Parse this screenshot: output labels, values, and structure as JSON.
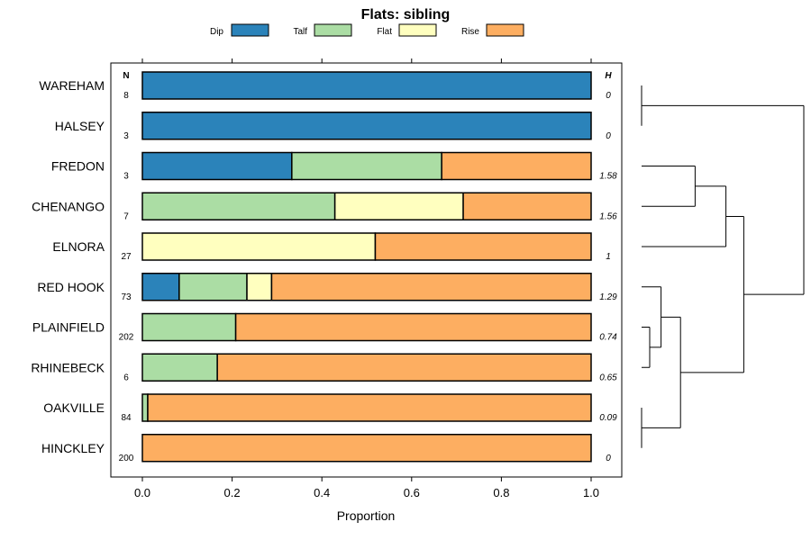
{
  "chart_data": {
    "type": "bar",
    "orientation": "horizontal",
    "stacked": true,
    "title": "Flats: sibling",
    "xlabel": "Proportion",
    "ylabel": "",
    "xlim": [
      0,
      1
    ],
    "xticks": [
      "0.0",
      "0.2",
      "0.4",
      "0.6",
      "0.8",
      "1.0"
    ],
    "n_header": "N",
    "h_header": "H",
    "legend_position": "top",
    "legend": [
      {
        "name": "Dip",
        "color": "#2b83ba"
      },
      {
        "name": "Talf",
        "color": "#abdda4"
      },
      {
        "name": "Flat",
        "color": "#ffffbf"
      },
      {
        "name": "Rise",
        "color": "#fdae61"
      }
    ],
    "categories": [
      "WAREHAM",
      "HALSEY",
      "FREDON",
      "CHENANGO",
      "ELNORA",
      "RED HOOK",
      "PLAINFIELD",
      "RHINEBECK",
      "OAKVILLE",
      "HINCKLEY"
    ],
    "n": [
      "8",
      "3",
      "3",
      "7",
      "27",
      "73",
      "202",
      "6",
      "84",
      "200"
    ],
    "h": [
      "0",
      "0",
      "1.58",
      "1.56",
      "1",
      "1.29",
      "0.74",
      "0.65",
      "0.09",
      "0"
    ],
    "series": [
      {
        "name": "Dip",
        "values": [
          1.0,
          1.0,
          0.333,
          0,
          0,
          0.082,
          0,
          0,
          0,
          0
        ]
      },
      {
        "name": "Talf",
        "values": [
          0,
          0,
          0.334,
          0.429,
          0,
          0.151,
          0.208,
          0.167,
          0.012,
          0
        ]
      },
      {
        "name": "Flat",
        "values": [
          0,
          0,
          0,
          0.286,
          0.519,
          0.055,
          0,
          0,
          0,
          0
        ]
      },
      {
        "name": "Rise",
        "values": [
          0,
          0,
          0.333,
          0.285,
          0.481,
          0.712,
          0.792,
          0.833,
          0.988,
          1.0
        ]
      }
    ],
    "dendrogram": {
      "merges": [
        {
          "left": "WAREHAM",
          "right": "HALSEY",
          "height": 0.0
        },
        {
          "left": "OAKVILLE",
          "right": "HINCKLEY",
          "height": 0.0
        },
        {
          "left": "PLAINFIELD",
          "right": "RHINEBECK",
          "height": 0.05
        },
        {
          "left": "FREDON",
          "right": "CHENANGO",
          "height": 0.33
        },
        {
          "left": "RED HOOK",
          "right": "PLAINFIELD+RHINEBECK",
          "height": 0.12
        },
        {
          "left": "FREDON+CHENANGO",
          "right": "ELNORA",
          "height": 0.52
        },
        {
          "left": "RED HOOK+PLAINFIELD+RHINEBECK",
          "right": "OAKVILLE+HINCKLEY",
          "height": 0.24
        },
        {
          "left": "FREDON+CHENANGO+ELNORA",
          "right": "RED HOOK+PLAINFIELD+RHINEBECK+OAKVILLE+HINCKLEY",
          "height": 0.63
        },
        {
          "left": "WAREHAM+HALSEY",
          "right": "REST",
          "height": 1.0
        }
      ]
    }
  }
}
